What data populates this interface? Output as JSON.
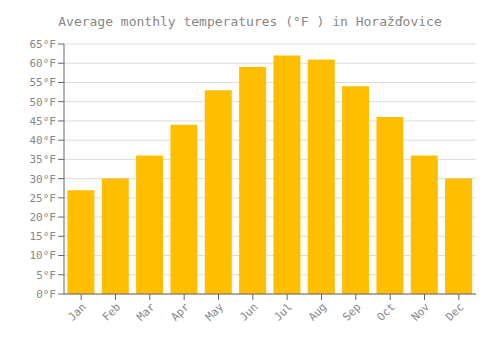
{
  "chart_data": {
    "type": "bar",
    "title": "Average monthly temperatures (°F ) in Horažďovice",
    "categories": [
      "Jan",
      "Feb",
      "Mar",
      "Apr",
      "May",
      "Jun",
      "Jul",
      "Aug",
      "Sep",
      "Oct",
      "Nov",
      "Dec"
    ],
    "values": [
      27,
      30,
      36,
      44,
      53,
      59,
      62,
      61,
      54,
      46,
      36,
      30
    ],
    "color": "#FFBE00",
    "ylim": [
      0,
      65
    ],
    "yticks": [
      {
        "value": 0,
        "label": "0°F"
      },
      {
        "value": 5,
        "label": "5°F"
      },
      {
        "value": 10,
        "label": "10°F"
      },
      {
        "value": 15,
        "label": "15°F"
      },
      {
        "value": 20,
        "label": "20°F"
      },
      {
        "value": 25,
        "label": "25°F"
      },
      {
        "value": 30,
        "label": "30°F"
      },
      {
        "value": 35,
        "label": "35°F"
      },
      {
        "value": 40,
        "label": "40°F"
      },
      {
        "value": 45,
        "label": "45°F"
      },
      {
        "value": 50,
        "label": "50°F"
      },
      {
        "value": 55,
        "label": "55°F"
      },
      {
        "value": 60,
        "label": "60°F"
      },
      {
        "value": 65,
        "label": "65°F"
      }
    ],
    "grid": true
  }
}
